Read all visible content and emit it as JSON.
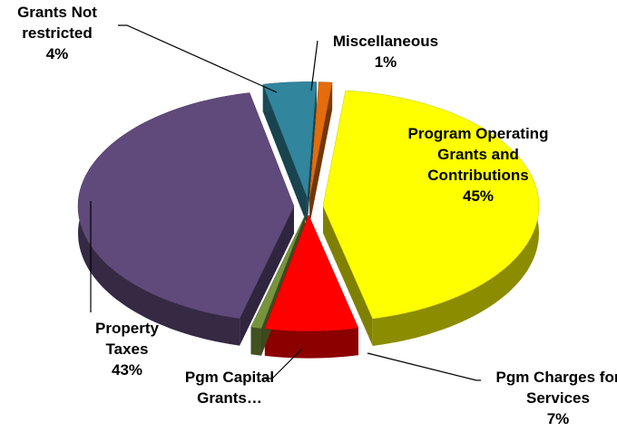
{
  "chart_data": {
    "type": "pie3d",
    "categories": [
      "Program Operating Grants and Contributions",
      "Pgm Charges for Services",
      "Pgm Capital Grants…",
      "Property Taxes",
      "Grants Not restricted",
      "Miscellaneous"
    ],
    "values": [
      45,
      7,
      0.8,
      43,
      4,
      1
    ],
    "value_labels": [
      "45%",
      "7%",
      null,
      "43%",
      "4%",
      "1%"
    ],
    "colors": [
      "#ffff00",
      "#ff0000",
      "#77933c",
      "#604a7b",
      "#31859c",
      "#e46c0a"
    ]
  }
}
